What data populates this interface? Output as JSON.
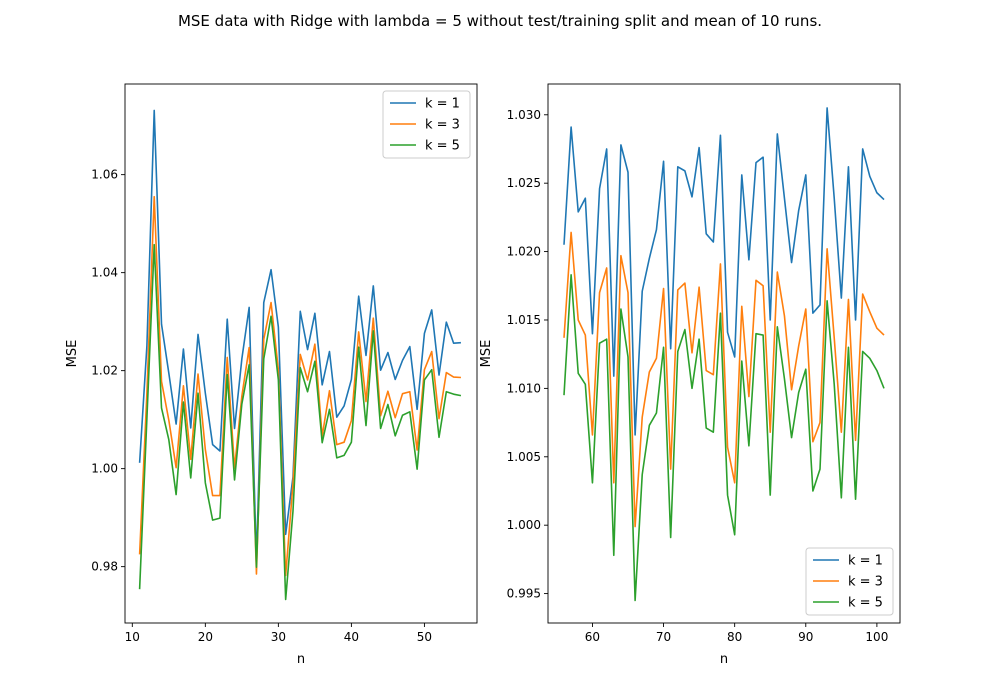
{
  "figure": {
    "suptitle": "MSE data with Ridge with lambda = 5 without test/training split and mean of 10 runs."
  },
  "chart_data": [
    {
      "type": "line",
      "xlabel": "n",
      "ylabel": "MSE",
      "xlim": [
        9,
        57.2
      ],
      "ylim": [
        0.9685,
        1.0785
      ],
      "xticks": [
        10,
        20,
        30,
        40,
        50
      ],
      "yticks": [
        0.98,
        1.0,
        1.02,
        1.04,
        1.06
      ],
      "ytick_decimals": 2,
      "legend_position": "upper right",
      "x": [
        11,
        12,
        13,
        14,
        15,
        16,
        17,
        18,
        19,
        20,
        21,
        22,
        23,
        24,
        25,
        26,
        27,
        28,
        29,
        30,
        31,
        32,
        33,
        34,
        35,
        36,
        37,
        38,
        39,
        40,
        41,
        42,
        43,
        44,
        45,
        46,
        47,
        48,
        49,
        50,
        51,
        52,
        53,
        54,
        55
      ],
      "series": [
        {
          "name": "k = 1",
          "color": "#1f77b4",
          "values": [
            1.0012,
            1.0251,
            1.0731,
            1.0295,
            1.0195,
            1.0091,
            1.0244,
            1.0083,
            1.0274,
            1.0154,
            1.0049,
            1.0036,
            1.0305,
            1.0082,
            1.0224,
            1.0329,
            0.9812,
            1.0339,
            1.0406,
            1.0289,
            0.9866,
            0.9983,
            1.0321,
            1.0243,
            1.0317,
            1.0171,
            1.0239,
            1.0105,
            1.0128,
            1.0182,
            1.0352,
            1.0231,
            1.0373,
            1.0201,
            1.0237,
            1.0182,
            1.0221,
            1.0249,
            1.0121,
            1.0276,
            1.0324,
            1.0191,
            1.0299,
            1.0256,
            1.0257
          ]
        },
        {
          "name": "k = 3",
          "color": "#ff7f0e",
          "values": [
            0.9825,
            1.0155,
            1.0555,
            1.0178,
            1.0099,
            1.0002,
            1.0169,
            1.0019,
            1.0193,
            1.0039,
            0.9945,
            0.9945,
            1.0227,
            1.0001,
            1.0148,
            1.0247,
            0.9785,
            1.0264,
            1.0339,
            1.0202,
            0.9782,
            0.9969,
            1.0233,
            1.0181,
            1.0254,
            1.0066,
            1.0159,
            1.0049,
            1.0054,
            1.0098,
            1.0279,
            1.0137,
            1.0307,
            1.0108,
            1.0158,
            1.0104,
            1.0153,
            1.0157,
            1.0038,
            1.0202,
            1.0239,
            1.0102,
            1.0196,
            1.0187,
            1.0186
          ]
        },
        {
          "name": "k = 5",
          "color": "#2ca02c",
          "values": [
            0.9754,
            1.0103,
            1.0457,
            1.0124,
            1.0059,
            0.9947,
            1.0136,
            0.9981,
            1.0154,
            0.9971,
            0.9895,
            0.9899,
            1.0192,
            0.9977,
            1.0132,
            1.0212,
            0.9799,
            1.0224,
            1.0311,
            1.0181,
            0.9733,
            0.9913,
            1.0206,
            1.0157,
            1.0219,
            1.0053,
            1.0121,
            1.0022,
            1.0027,
            1.0054,
            1.0248,
            1.0088,
            1.0281,
            1.0082,
            1.0131,
            1.0067,
            1.0109,
            1.0116,
            0.9999,
            1.0181,
            1.0202,
            1.0064,
            1.0157,
            1.0152,
            1.0149
          ]
        }
      ]
    },
    {
      "type": "line",
      "xlabel": "n",
      "ylabel": "MSE",
      "xlim": [
        53.75,
        103.25
      ],
      "ylim": [
        0.99285,
        1.03225
      ],
      "xticks": [
        60,
        70,
        80,
        90,
        100
      ],
      "yticks": [
        0.995,
        1.0,
        1.005,
        1.01,
        1.015,
        1.02,
        1.025,
        1.03
      ],
      "ytick_decimals": 3,
      "legend_position": "lower right",
      "x": [
        56,
        57,
        58,
        59,
        60,
        61,
        62,
        63,
        64,
        65,
        66,
        67,
        68,
        69,
        70,
        71,
        72,
        73,
        74,
        75,
        76,
        77,
        78,
        79,
        80,
        81,
        82,
        83,
        84,
        85,
        86,
        87,
        88,
        89,
        90,
        91,
        92,
        93,
        94,
        95,
        96,
        97,
        98,
        99,
        100,
        101
      ],
      "series": [
        {
          "name": "k = 1",
          "color": "#1f77b4",
          "values": [
            1.0205,
            1.0291,
            1.0229,
            1.0239,
            1.014,
            1.0246,
            1.0275,
            1.0109,
            1.0278,
            1.0258,
            1.0066,
            1.0171,
            1.0195,
            1.0216,
            1.0266,
            1.0129,
            1.0262,
            1.0259,
            1.024,
            1.0276,
            1.0213,
            1.0207,
            1.0285,
            1.0141,
            1.0123,
            1.0256,
            1.0194,
            1.0265,
            1.0269,
            1.015,
            1.0286,
            1.0239,
            1.0192,
            1.023,
            1.0256,
            1.0155,
            1.0161,
            1.0305,
            1.0239,
            1.0166,
            1.0262,
            1.015,
            1.0275,
            1.0255,
            1.0243,
            1.0238
          ]
        },
        {
          "name": "k = 3",
          "color": "#ff7f0e",
          "values": [
            1.0137,
            1.0214,
            1.015,
            1.0139,
            1.0066,
            1.017,
            1.0188,
            1.0031,
            1.0197,
            1.017,
            0.9999,
            1.0079,
            1.0112,
            1.0122,
            1.0173,
            1.0041,
            1.0172,
            1.0177,
            1.0126,
            1.0174,
            1.0113,
            1.011,
            1.0191,
            1.0057,
            1.0031,
            1.016,
            1.0094,
            1.0179,
            1.0175,
            1.0068,
            1.0185,
            1.0153,
            1.0099,
            1.0131,
            1.0158,
            1.0061,
            1.0075,
            1.0202,
            1.0137,
            1.0068,
            1.0165,
            1.0062,
            1.0169,
            1.0156,
            1.0144,
            1.0139
          ]
        },
        {
          "name": "k = 5",
          "color": "#2ca02c",
          "values": [
            1.0095,
            1.0183,
            1.0111,
            1.0103,
            1.0031,
            1.0133,
            1.0136,
            0.9978,
            1.0158,
            1.0123,
            0.9945,
            1.0037,
            1.0073,
            1.0082,
            1.013,
            0.9991,
            1.0127,
            1.0143,
            1.01,
            1.0136,
            1.0071,
            1.0068,
            1.0155,
            1.0022,
            0.9993,
            1.012,
            1.0058,
            1.014,
            1.0139,
            1.0022,
            1.0145,
            1.0107,
            1.0064,
            1.0097,
            1.0114,
            1.0025,
            1.0041,
            1.0164,
            1.0103,
            1.002,
            1.013,
            1.0019,
            1.0127,
            1.0122,
            1.0113,
            1.01
          ]
        }
      ]
    }
  ]
}
